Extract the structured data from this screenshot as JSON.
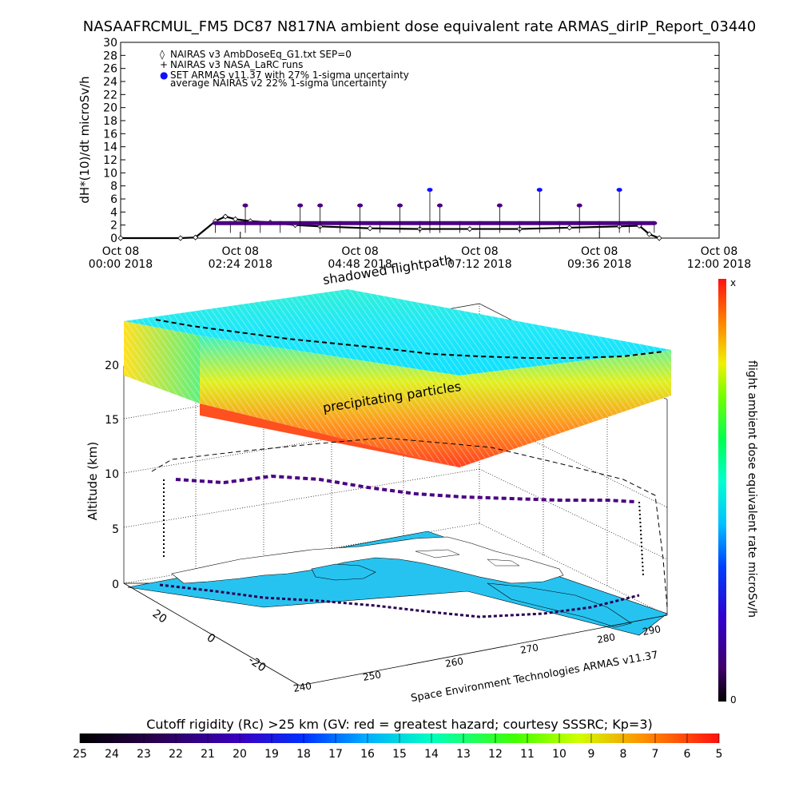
{
  "title": "NASAAFRCMUL_FM5 DC87 N817NA ambient dose equivalent rate ARMAS_dirIP_Report_03440",
  "top_panel": {
    "ylabel": "dH*(10)/dt microSv/h",
    "y_ticks": [
      "0",
      "2",
      "4",
      "6",
      "8",
      "10",
      "12",
      "14",
      "16",
      "18",
      "20",
      "22",
      "24",
      "26",
      "28",
      "30"
    ],
    "x_ticks": [
      {
        "line1": "Oct 08",
        "line2": "00:00 2018"
      },
      {
        "line1": "Oct 08",
        "line2": "02:24 2018"
      },
      {
        "line1": "Oct 08",
        "line2": "04:48 2018"
      },
      {
        "line1": "Oct 08",
        "line2": "07:12 2018"
      },
      {
        "line1": "Oct 08",
        "line2": "09:36 2018"
      },
      {
        "line1": "Oct 08",
        "line2": "12:00 2018"
      }
    ],
    "legend": [
      {
        "marker": "◊",
        "label": "NAIRAS v3 AmbDoseEq_G1.txt SEP=0"
      },
      {
        "marker": "+",
        "label": "NAIRAS v3 NASA_LaRC runs"
      },
      {
        "marker": "●",
        "label": "SET ARMAS v11.37 with 27% 1-sigma uncertainty"
      },
      {
        "marker": "",
        "label": "average NAIRAS v2 22% 1-sigma uncertainty"
      }
    ]
  },
  "chart_data": {
    "type": "line",
    "title": "NASAAFRCMUL_FM5 DC87 N817NA ambient dose equivalent rate ARMAS_dirIP_Report_03440",
    "xlabel": "",
    "ylabel": "dH*(10)/dt microSv/h",
    "xlim_hours": [
      0,
      12
    ],
    "ylim": [
      0,
      30
    ],
    "grid": false,
    "legend_position": "top-left",
    "series": [
      {
        "name": "NAIRAS v3 AmbDoseEq_G1.txt SEP=0",
        "x_hours": [
          0.0,
          1.2,
          1.5,
          1.9,
          2.1,
          2.3,
          2.6,
          3.0,
          3.5,
          4.0,
          5.0,
          6.0,
          7.0,
          8.0,
          9.0,
          10.0,
          10.4,
          10.6,
          10.8
        ],
        "y": [
          0.0,
          0.0,
          0.1,
          2.6,
          3.3,
          2.9,
          2.6,
          2.4,
          2.0,
          1.8,
          1.5,
          1.4,
          1.4,
          1.4,
          1.6,
          1.8,
          1.9,
          0.6,
          0.0
        ]
      },
      {
        "name": "SET ARMAS v11.37 with 27% 1-sigma uncertainty",
        "x_hours": [
          1.9,
          2.2,
          2.5,
          2.8,
          3.2,
          3.6,
          4.0,
          4.4,
          4.8,
          5.2,
          5.6,
          6.0,
          6.2,
          6.4,
          6.8,
          7.2,
          7.6,
          8.0,
          8.4,
          8.8,
          9.2,
          9.6,
          10.0,
          10.2,
          10.7
        ],
        "y": [
          2.3,
          2.3,
          5.0,
          2.3,
          2.3,
          5.0,
          5.0,
          2.3,
          5.0,
          2.3,
          5.0,
          2.3,
          7.4,
          5.0,
          2.3,
          2.3,
          5.0,
          2.3,
          7.4,
          2.3,
          5.0,
          2.3,
          7.4,
          2.3,
          2.3
        ]
      }
    ]
  },
  "three_d_panel": {
    "annotations": [
      "shadowed flightpath",
      "precipitating particles"
    ],
    "z_label": "Altitude (km)",
    "z_ticks": [
      "0",
      "5",
      "10",
      "15",
      "20"
    ],
    "lat_ticks": [
      "20",
      "0",
      "-20"
    ],
    "lon_ticks": [
      "240",
      "250",
      "260",
      "270",
      "280",
      "290"
    ],
    "credit": "Space Environment Technologies ARMAS v11.37"
  },
  "right_colorbar": {
    "label": "flight ambient dose equivalent rate microSv/h",
    "top": "x",
    "bottom": "0"
  },
  "bottom_colorbar": {
    "title": "Cutoff rigidity (Rc) >25 km (GV: red = greatest hazard; courtesy SSSRC; Kp=3)",
    "ticks": [
      "25",
      "24",
      "23",
      "22",
      "21",
      "20",
      "19",
      "18",
      "17",
      "16",
      "15",
      "14",
      "13",
      "12",
      "11",
      "10",
      "9",
      "8",
      "7",
      "6",
      "5"
    ]
  },
  "colors": {
    "armas_points": "#4b0082",
    "armas_high": "#1010ff",
    "ocean": "#27c3f0",
    "land": "#ffffff",
    "rainbow": [
      "#000000",
      "#2a0050",
      "#3a00a0",
      "#0030ff",
      "#0090ff",
      "#00e0ff",
      "#00ffb0",
      "#00ff40",
      "#60ff00",
      "#d0ff00",
      "#ffd000",
      "#ff8000",
      "#ff2000"
    ]
  }
}
